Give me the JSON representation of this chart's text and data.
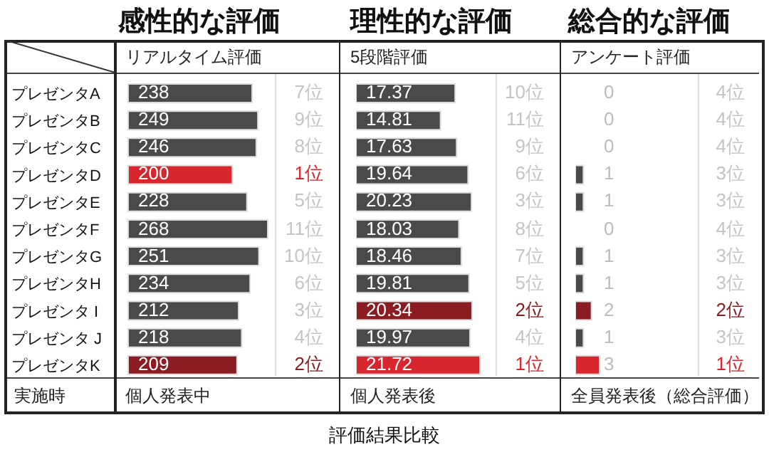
{
  "chart_data": [
    {
      "type": "bar",
      "orientation": "horizontal",
      "title": "感性的な評価",
      "subtitle": "リアルタイム評価",
      "categories": [
        "プレゼンタA",
        "プレゼンタB",
        "プレゼンタC",
        "プレゼンタD",
        "プレゼンタE",
        "プレゼンタF",
        "プレゼンタG",
        "プレゼンタH",
        "プレゼンタ I",
        "プレゼンタ J",
        "プレゼンタK"
      ],
      "values": [
        238,
        249,
        246,
        200,
        228,
        268,
        251,
        234,
        212,
        218,
        209
      ],
      "colors": [
        "#4a4a4a",
        "#4a4a4a",
        "#4a4a4a",
        "#d7262e",
        "#4a4a4a",
        "#4a4a4a",
        "#4a4a4a",
        "#4a4a4a",
        "#4a4a4a",
        "#4a4a4a",
        "#8a1c22"
      ],
      "data_labels": true,
      "tick_labels": "y",
      "annotations": [
        "7位",
        "9位",
        "8位",
        "1位",
        "5位",
        "11位",
        "10位",
        "6位",
        "3位",
        "4位",
        "2位",
        "個人発表中",
        "実施時"
      ]
    },
    {
      "type": "bar",
      "orientation": "horizontal",
      "title": "理性的な評価",
      "subtitle": "5段階評価",
      "categories": [
        null,
        null,
        null,
        null,
        null,
        null,
        null,
        null,
        null,
        null,
        null
      ],
      "values": [
        17.37,
        14.81,
        17.63,
        19.64,
        20.23,
        18.03,
        18.46,
        19.81,
        20.34,
        19.97,
        21.72
      ],
      "colors": [
        "#4a4a4a",
        "#4a4a4a",
        "#4a4a4a",
        "#4a4a4a",
        "#4a4a4a",
        "#4a4a4a",
        "#4a4a4a",
        "#4a4a4a",
        "#8a1c22",
        "#4a4a4a",
        "#d7262e"
      ],
      "data_labels": true,
      "tick_labels": false,
      "annotations": [
        "10位",
        "11位",
        "9位",
        "6位",
        "3位",
        "8位",
        "7位",
        "5位",
        "2位",
        "4位",
        "1位",
        "個人発表後",
        "評価結果比較"
      ]
    },
    {
      "type": "bar",
      "orientation": "horizontal",
      "title": "総合的な評価",
      "subtitle": "アンケート評価",
      "categories": [
        null,
        null,
        null,
        null,
        null,
        null,
        null,
        null,
        null,
        null,
        null
      ],
      "values": [
        0,
        0,
        0,
        1,
        1,
        0,
        1,
        1,
        2,
        1,
        3
      ],
      "colors": [
        "#4a4a4a",
        "#4a4a4a",
        "#4a4a4a",
        "#4a4a4a",
        "#4a4a4a",
        "#4a4a4a",
        "#4a4a4a",
        "#4a4a4a",
        "#8a1c22",
        "#4a4a4a",
        "#d7262e"
      ],
      "data_labels": true,
      "tick_labels": false,
      "annotations": [
        "4位",
        "4位",
        "4位",
        "3位",
        "3位",
        "4位",
        "3位",
        "3位",
        "2位",
        "3位",
        "1位",
        "全員発表後（総合評価）"
      ]
    }
  ]
}
